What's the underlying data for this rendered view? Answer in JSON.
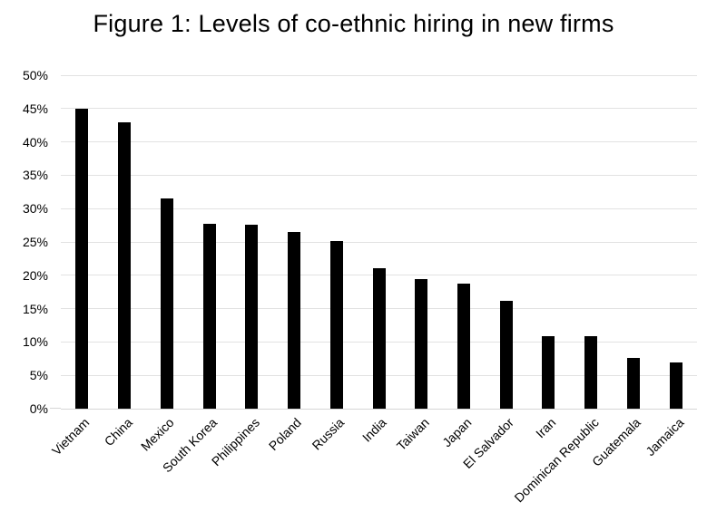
{
  "figure": {
    "title": "Figure 1: Levels of co-ethnic hiring in new firms"
  },
  "chart_data": {
    "type": "bar",
    "title": "Figure 1: Levels of co-ethnic hiring in new firms",
    "categories": [
      "Vietnam",
      "China",
      "Mexico",
      "South Korea",
      "Philippines",
      "Poland",
      "Russia",
      "India",
      "Taiwan",
      "Japan",
      "El Salvador",
      "Iran",
      "Dominican Republic",
      "Guatemala",
      "Jamaica"
    ],
    "values": [
      45.0,
      43.0,
      31.5,
      27.7,
      27.6,
      26.5,
      25.2,
      21.0,
      19.4,
      18.7,
      16.2,
      10.9,
      10.9,
      7.6,
      6.9
    ],
    "xlabel": "",
    "ylabel": "",
    "ylim": [
      0,
      50
    ],
    "ytick_step": 5,
    "ytick_labels": [
      "0%",
      "5%",
      "10%",
      "15%",
      "20%",
      "25%",
      "30%",
      "35%",
      "40%",
      "45%",
      "50%"
    ],
    "grid": "horizontal",
    "legend": "none",
    "colors": {
      "bar": "#000000",
      "gridline": "#e2e2e2",
      "axis_line": "#d6d6d6",
      "text": "#000000",
      "background": "#ffffff"
    }
  }
}
